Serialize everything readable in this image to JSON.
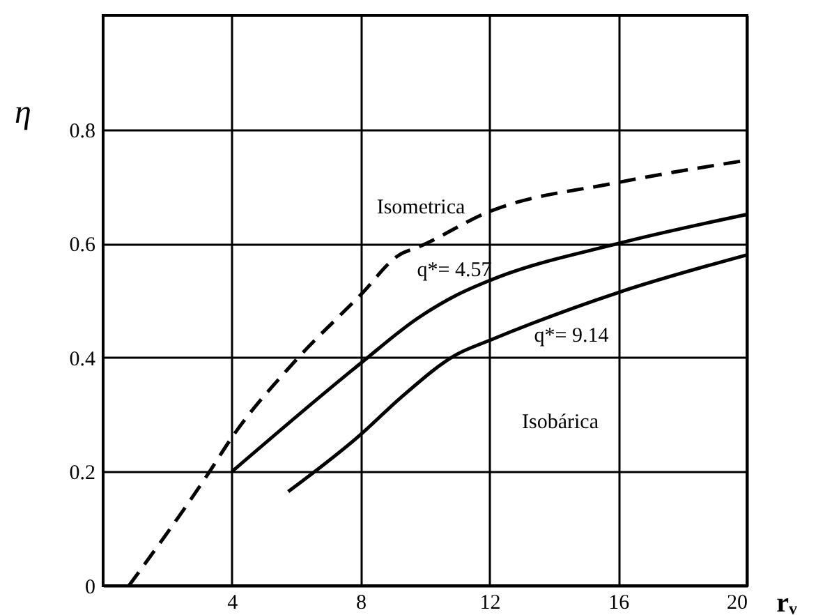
{
  "chart_data": {
    "type": "line",
    "xlabel": "rᵥ",
    "ylabel": "η",
    "xlim": [
      0,
      20
    ],
    "xticks": [
      4,
      8,
      12,
      16,
      20
    ],
    "ylim": [
      0,
      1.0
    ],
    "yticks": [
      0,
      0.2,
      0.4,
      0.6,
      0.8
    ],
    "grid": true,
    "series": [
      {
        "color": "#000000",
        "line_style": "dashed",
        "x": [
          0.8,
          3.26,
          4,
          5.9,
          8,
          9.2,
          9.8,
          12,
          16,
          20
        ],
        "values": [
          0.0,
          0.196,
          0.26,
          0.39,
          0.51,
          0.58,
          0.594,
          0.656,
          0.707,
          0.746
        ]
      },
      {
        "color": "#000000",
        "line_style": "solid",
        "x": [
          4,
          8,
          9.8,
          11,
          12,
          16,
          20
        ],
        "values": [
          0.2,
          0.39,
          0.47,
          0.51,
          0.535,
          0.6,
          0.651
        ]
      },
      {
        "color": "#000000",
        "line_style": "solid",
        "x": [
          5.75,
          8,
          9.25,
          11,
          12,
          16,
          20
        ],
        "values": [
          0.165,
          0.265,
          0.33,
          0.406,
          0.43,
          0.514,
          0.58
        ]
      }
    ],
    "annotations": [
      "Isometrica",
      "q*= 4.57",
      "q*= 9.14",
      "Isobárica"
    ]
  }
}
